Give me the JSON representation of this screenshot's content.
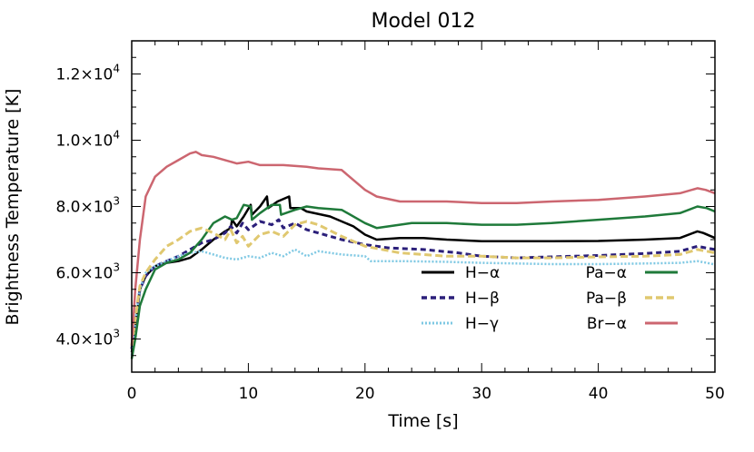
{
  "chart_data": {
    "type": "line",
    "title": "Model 012",
    "xlabel": "Time [s]",
    "ylabel": "Brightness Temperature [K]",
    "xlim": [
      0,
      50
    ],
    "ylim": [
      3000,
      13000
    ],
    "x_ticks": [
      {
        "value": 0,
        "label": "0"
      },
      {
        "value": 10,
        "label": "10"
      },
      {
        "value": 20,
        "label": "20"
      },
      {
        "value": 30,
        "label": "30"
      },
      {
        "value": 40,
        "label": "40"
      },
      {
        "value": 50,
        "label": "50"
      }
    ],
    "y_ticks": [
      {
        "value": 4000,
        "mant": "4.0×10",
        "exp": "3"
      },
      {
        "value": 6000,
        "mant": "6.0×10",
        "exp": "3"
      },
      {
        "value": 8000,
        "mant": "8.0×10",
        "exp": "3"
      },
      {
        "value": 10000,
        "mant": "1.0×10",
        "exp": "4"
      },
      {
        "value": 12000,
        "mant": "1.2×10",
        "exp": "4"
      }
    ],
    "grid": false,
    "legend_position": "lower-right",
    "series": [
      {
        "name": "H−α",
        "color": "#000000",
        "dash": "solid",
        "points": [
          [
            0,
            3600
          ],
          [
            0.3,
            4300
          ],
          [
            0.7,
            5500
          ],
          [
            1.2,
            5900
          ],
          [
            2,
            6200
          ],
          [
            3,
            6300
          ],
          [
            4,
            6350
          ],
          [
            5,
            6450
          ],
          [
            6,
            6700
          ],
          [
            7,
            7000
          ],
          [
            8,
            7250
          ],
          [
            8.5,
            7350
          ],
          [
            8.6,
            7600
          ],
          [
            9,
            7400
          ],
          [
            9.6,
            7700
          ],
          [
            10.2,
            8050
          ],
          [
            10.3,
            7750
          ],
          [
            11,
            8000
          ],
          [
            11.6,
            8300
          ],
          [
            11.7,
            7950
          ],
          [
            12.5,
            8150
          ],
          [
            13.5,
            8300
          ],
          [
            13.6,
            7950
          ],
          [
            14.5,
            7950
          ],
          [
            15,
            7850
          ],
          [
            17,
            7700
          ],
          [
            19,
            7400
          ],
          [
            20,
            7150
          ],
          [
            21,
            7000
          ],
          [
            23,
            7050
          ],
          [
            25,
            7050
          ],
          [
            27,
            7000
          ],
          [
            30,
            6950
          ],
          [
            33,
            6950
          ],
          [
            36,
            6950
          ],
          [
            40,
            6960
          ],
          [
            44,
            7000
          ],
          [
            47,
            7050
          ],
          [
            48.5,
            7250
          ],
          [
            49,
            7200
          ],
          [
            50,
            7050
          ]
        ]
      },
      {
        "name": "H−β",
        "color": "#2b1f7a",
        "dash": "6,4",
        "points": [
          [
            0,
            3700
          ],
          [
            0.3,
            4500
          ],
          [
            0.7,
            5500
          ],
          [
            1.2,
            5900
          ],
          [
            2,
            6200
          ],
          [
            3,
            6350
          ],
          [
            4,
            6500
          ],
          [
            5,
            6700
          ],
          [
            6,
            6900
          ],
          [
            7,
            7000
          ],
          [
            8,
            7200
          ],
          [
            8.5,
            7400
          ],
          [
            9,
            7200
          ],
          [
            9.5,
            7500
          ],
          [
            10,
            7300
          ],
          [
            11,
            7550
          ],
          [
            12,
            7450
          ],
          [
            12.6,
            7600
          ],
          [
            13,
            7350
          ],
          [
            14,
            7500
          ],
          [
            15,
            7300
          ],
          [
            16,
            7200
          ],
          [
            18,
            7000
          ],
          [
            20,
            6850
          ],
          [
            22,
            6750
          ],
          [
            25,
            6700
          ],
          [
            28,
            6600
          ],
          [
            30,
            6500
          ],
          [
            33,
            6450
          ],
          [
            36,
            6480
          ],
          [
            40,
            6520
          ],
          [
            44,
            6580
          ],
          [
            47,
            6650
          ],
          [
            48.5,
            6800
          ],
          [
            49.2,
            6750
          ],
          [
            50,
            6700
          ]
        ]
      },
      {
        "name": "H−γ",
        "color": "#7ec8e3",
        "dash": "2,2",
        "points": [
          [
            0,
            3500
          ],
          [
            0.3,
            4500
          ],
          [
            0.7,
            5500
          ],
          [
            1.2,
            6000
          ],
          [
            2,
            6200
          ],
          [
            3,
            6350
          ],
          [
            4,
            6500
          ],
          [
            5,
            6600
          ],
          [
            6,
            6650
          ],
          [
            7,
            6550
          ],
          [
            8,
            6450
          ],
          [
            9,
            6400
          ],
          [
            10,
            6500
          ],
          [
            11,
            6450
          ],
          [
            12,
            6600
          ],
          [
            13,
            6500
          ],
          [
            14,
            6700
          ],
          [
            15,
            6500
          ],
          [
            16,
            6650
          ],
          [
            18,
            6550
          ],
          [
            20,
            6500
          ],
          [
            20.5,
            6350
          ],
          [
            23,
            6350
          ],
          [
            27,
            6330
          ],
          [
            30,
            6300
          ],
          [
            33,
            6280
          ],
          [
            36,
            6260
          ],
          [
            40,
            6260
          ],
          [
            44,
            6280
          ],
          [
            47,
            6300
          ],
          [
            48.5,
            6350
          ],
          [
            49.3,
            6300
          ],
          [
            50,
            6250
          ]
        ]
      },
      {
        "name": "Pa−α",
        "color": "#1f7a3a",
        "dash": "solid",
        "points": [
          [
            0,
            3400
          ],
          [
            0.3,
            4000
          ],
          [
            0.7,
            5000
          ],
          [
            1.2,
            5500
          ],
          [
            2,
            6100
          ],
          [
            3,
            6300
          ],
          [
            4,
            6400
          ],
          [
            5,
            6600
          ],
          [
            6,
            7000
          ],
          [
            7,
            7500
          ],
          [
            8,
            7700
          ],
          [
            8.6,
            7600
          ],
          [
            9,
            7650
          ],
          [
            9.6,
            8050
          ],
          [
            10.2,
            8000
          ],
          [
            10.3,
            7600
          ],
          [
            11,
            7800
          ],
          [
            12,
            8050
          ],
          [
            12.7,
            8050
          ],
          [
            12.8,
            7750
          ],
          [
            14,
            7900
          ],
          [
            15,
            8000
          ],
          [
            16,
            7950
          ],
          [
            18,
            7900
          ],
          [
            20,
            7500
          ],
          [
            21,
            7350
          ],
          [
            24,
            7500
          ],
          [
            27,
            7500
          ],
          [
            30,
            7450
          ],
          [
            33,
            7450
          ],
          [
            36,
            7500
          ],
          [
            40,
            7600
          ],
          [
            44,
            7700
          ],
          [
            47,
            7800
          ],
          [
            48.5,
            8000
          ],
          [
            49.3,
            7950
          ],
          [
            50,
            7850
          ]
        ]
      },
      {
        "name": "Pa−β",
        "color": "#e0c870",
        "dash": "8,4",
        "points": [
          [
            0,
            3800
          ],
          [
            0.3,
            4600
          ],
          [
            0.7,
            5600
          ],
          [
            1.2,
            6000
          ],
          [
            2,
            6400
          ],
          [
            3,
            6800
          ],
          [
            4,
            7000
          ],
          [
            5,
            7250
          ],
          [
            6,
            7350
          ],
          [
            7,
            7200
          ],
          [
            8,
            7000
          ],
          [
            8.5,
            7300
          ],
          [
            9,
            6900
          ],
          [
            9.5,
            7100
          ],
          [
            10,
            6800
          ],
          [
            11,
            7150
          ],
          [
            12,
            7250
          ],
          [
            13,
            7100
          ],
          [
            14,
            7450
          ],
          [
            15,
            7550
          ],
          [
            16,
            7450
          ],
          [
            18,
            7100
          ],
          [
            20,
            6800
          ],
          [
            23,
            6600
          ],
          [
            27,
            6500
          ],
          [
            30,
            6500
          ],
          [
            33,
            6450
          ],
          [
            36,
            6450
          ],
          [
            40,
            6480
          ],
          [
            44,
            6500
          ],
          [
            47,
            6550
          ],
          [
            48.5,
            6700
          ],
          [
            49.3,
            6650
          ],
          [
            50,
            6600
          ]
        ]
      },
      {
        "name": "Br−α",
        "color": "#cc6670",
        "dash": "solid",
        "points": [
          [
            0,
            3800
          ],
          [
            0.3,
            5500
          ],
          [
            0.7,
            7000
          ],
          [
            1.2,
            8300
          ],
          [
            2,
            8900
          ],
          [
            3,
            9200
          ],
          [
            4,
            9400
          ],
          [
            5,
            9600
          ],
          [
            5.5,
            9650
          ],
          [
            6,
            9550
          ],
          [
            7,
            9500
          ],
          [
            8,
            9400
          ],
          [
            9,
            9300
          ],
          [
            10,
            9350
          ],
          [
            11,
            9250
          ],
          [
            13,
            9250
          ],
          [
            15,
            9200
          ],
          [
            16,
            9150
          ],
          [
            18,
            9100
          ],
          [
            20,
            8500
          ],
          [
            21,
            8300
          ],
          [
            23,
            8150
          ],
          [
            27,
            8150
          ],
          [
            30,
            8100
          ],
          [
            33,
            8100
          ],
          [
            36,
            8150
          ],
          [
            40,
            8200
          ],
          [
            44,
            8300
          ],
          [
            47,
            8400
          ],
          [
            48.5,
            8550
          ],
          [
            49.2,
            8500
          ],
          [
            50,
            8400
          ]
        ]
      }
    ]
  }
}
